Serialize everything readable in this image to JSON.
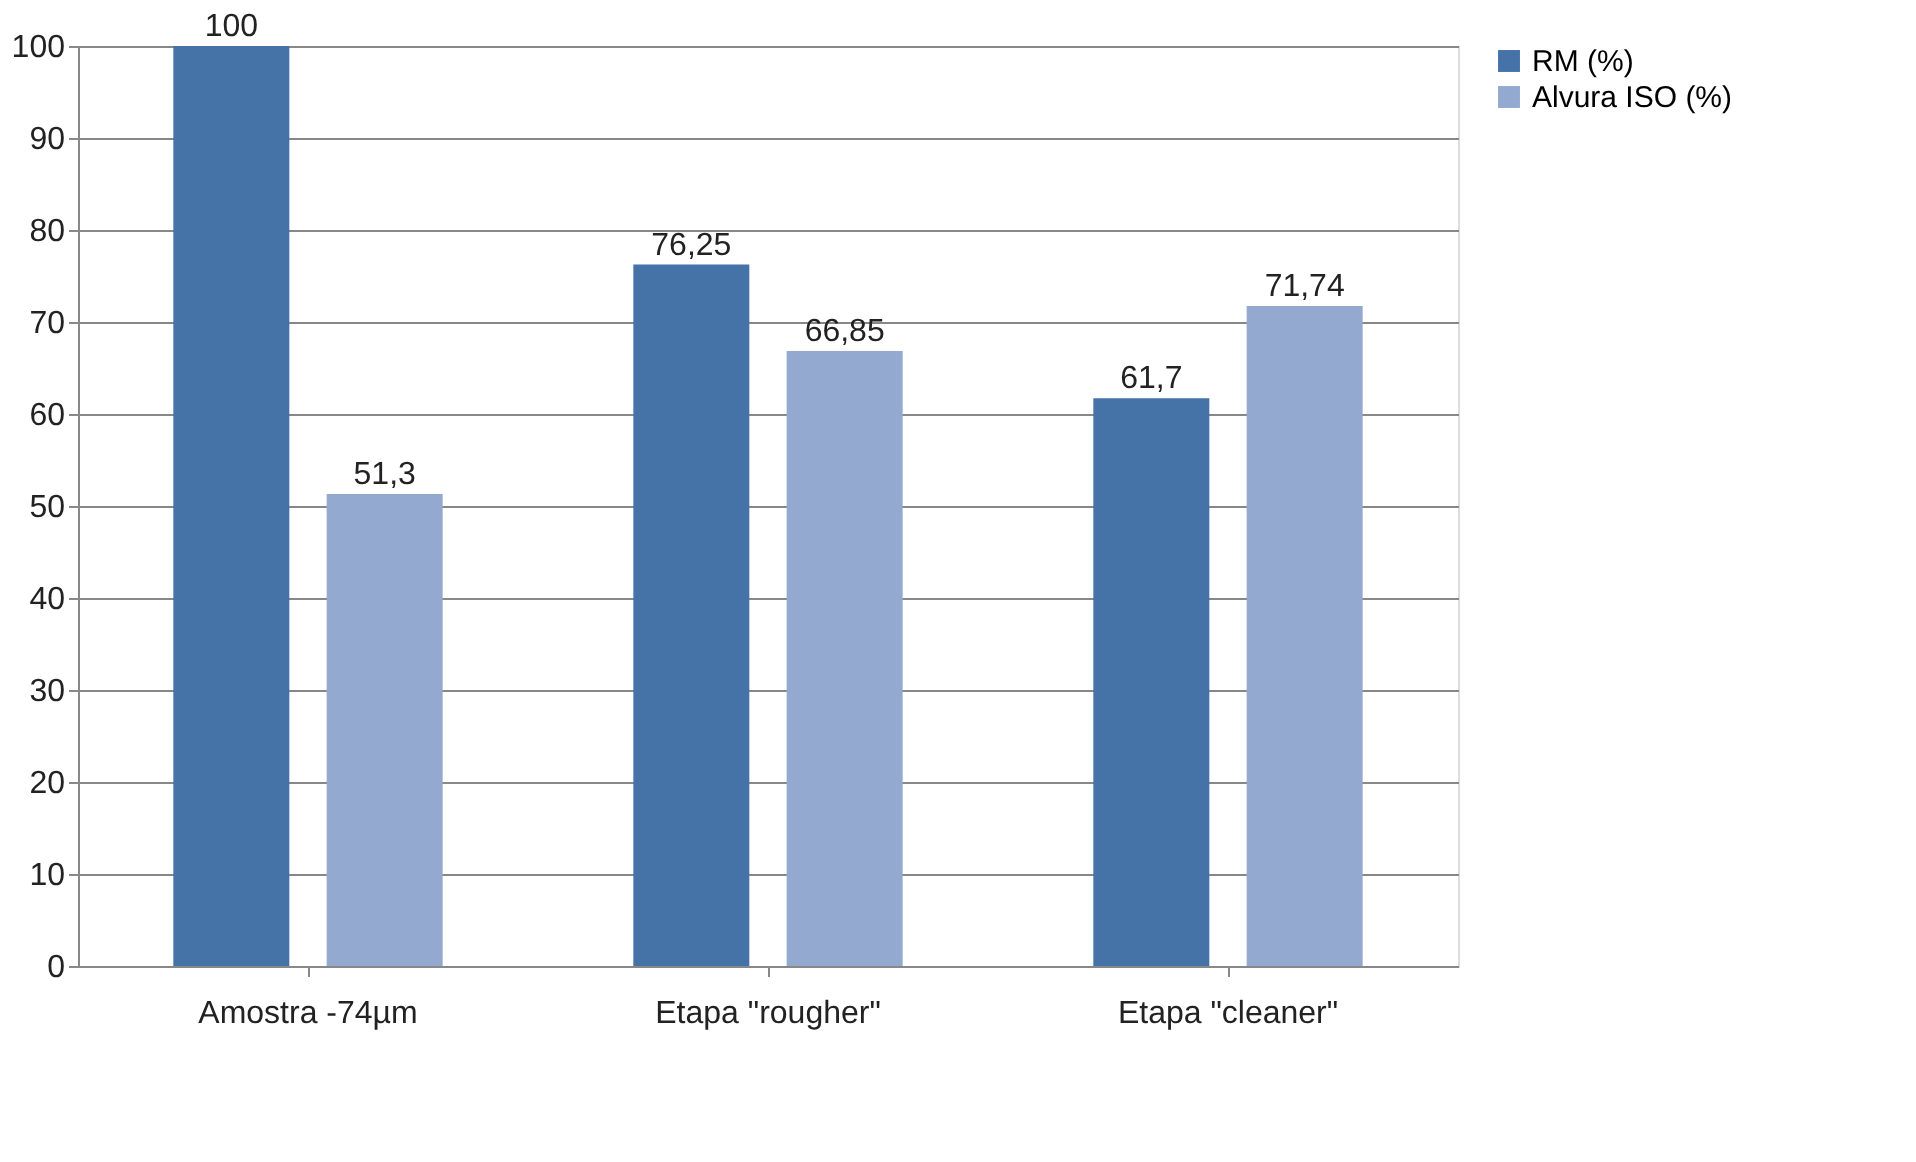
{
  "chart_data": {
    "type": "bar",
    "categories": [
      "Amostra -74µm",
      "Etapa \"rougher\"",
      "Etapa \"cleaner\""
    ],
    "series": [
      {
        "name": "RM (%)",
        "color": "#4572a7",
        "values": [
          100,
          76.25,
          61.7
        ],
        "value_labels": [
          "100",
          "76,25",
          "61,7"
        ]
      },
      {
        "name": "Alvura ISO (%)",
        "color": "#93a9cf",
        "values": [
          51.3,
          66.85,
          71.74
        ],
        "value_labels": [
          "51,3",
          "66,85",
          "71,74"
        ]
      }
    ],
    "ylim": [
      0,
      100
    ],
    "yticks": [
      0,
      10,
      20,
      30,
      40,
      50,
      60,
      70,
      80,
      90,
      100
    ],
    "grid": "y",
    "legend": "right"
  }
}
